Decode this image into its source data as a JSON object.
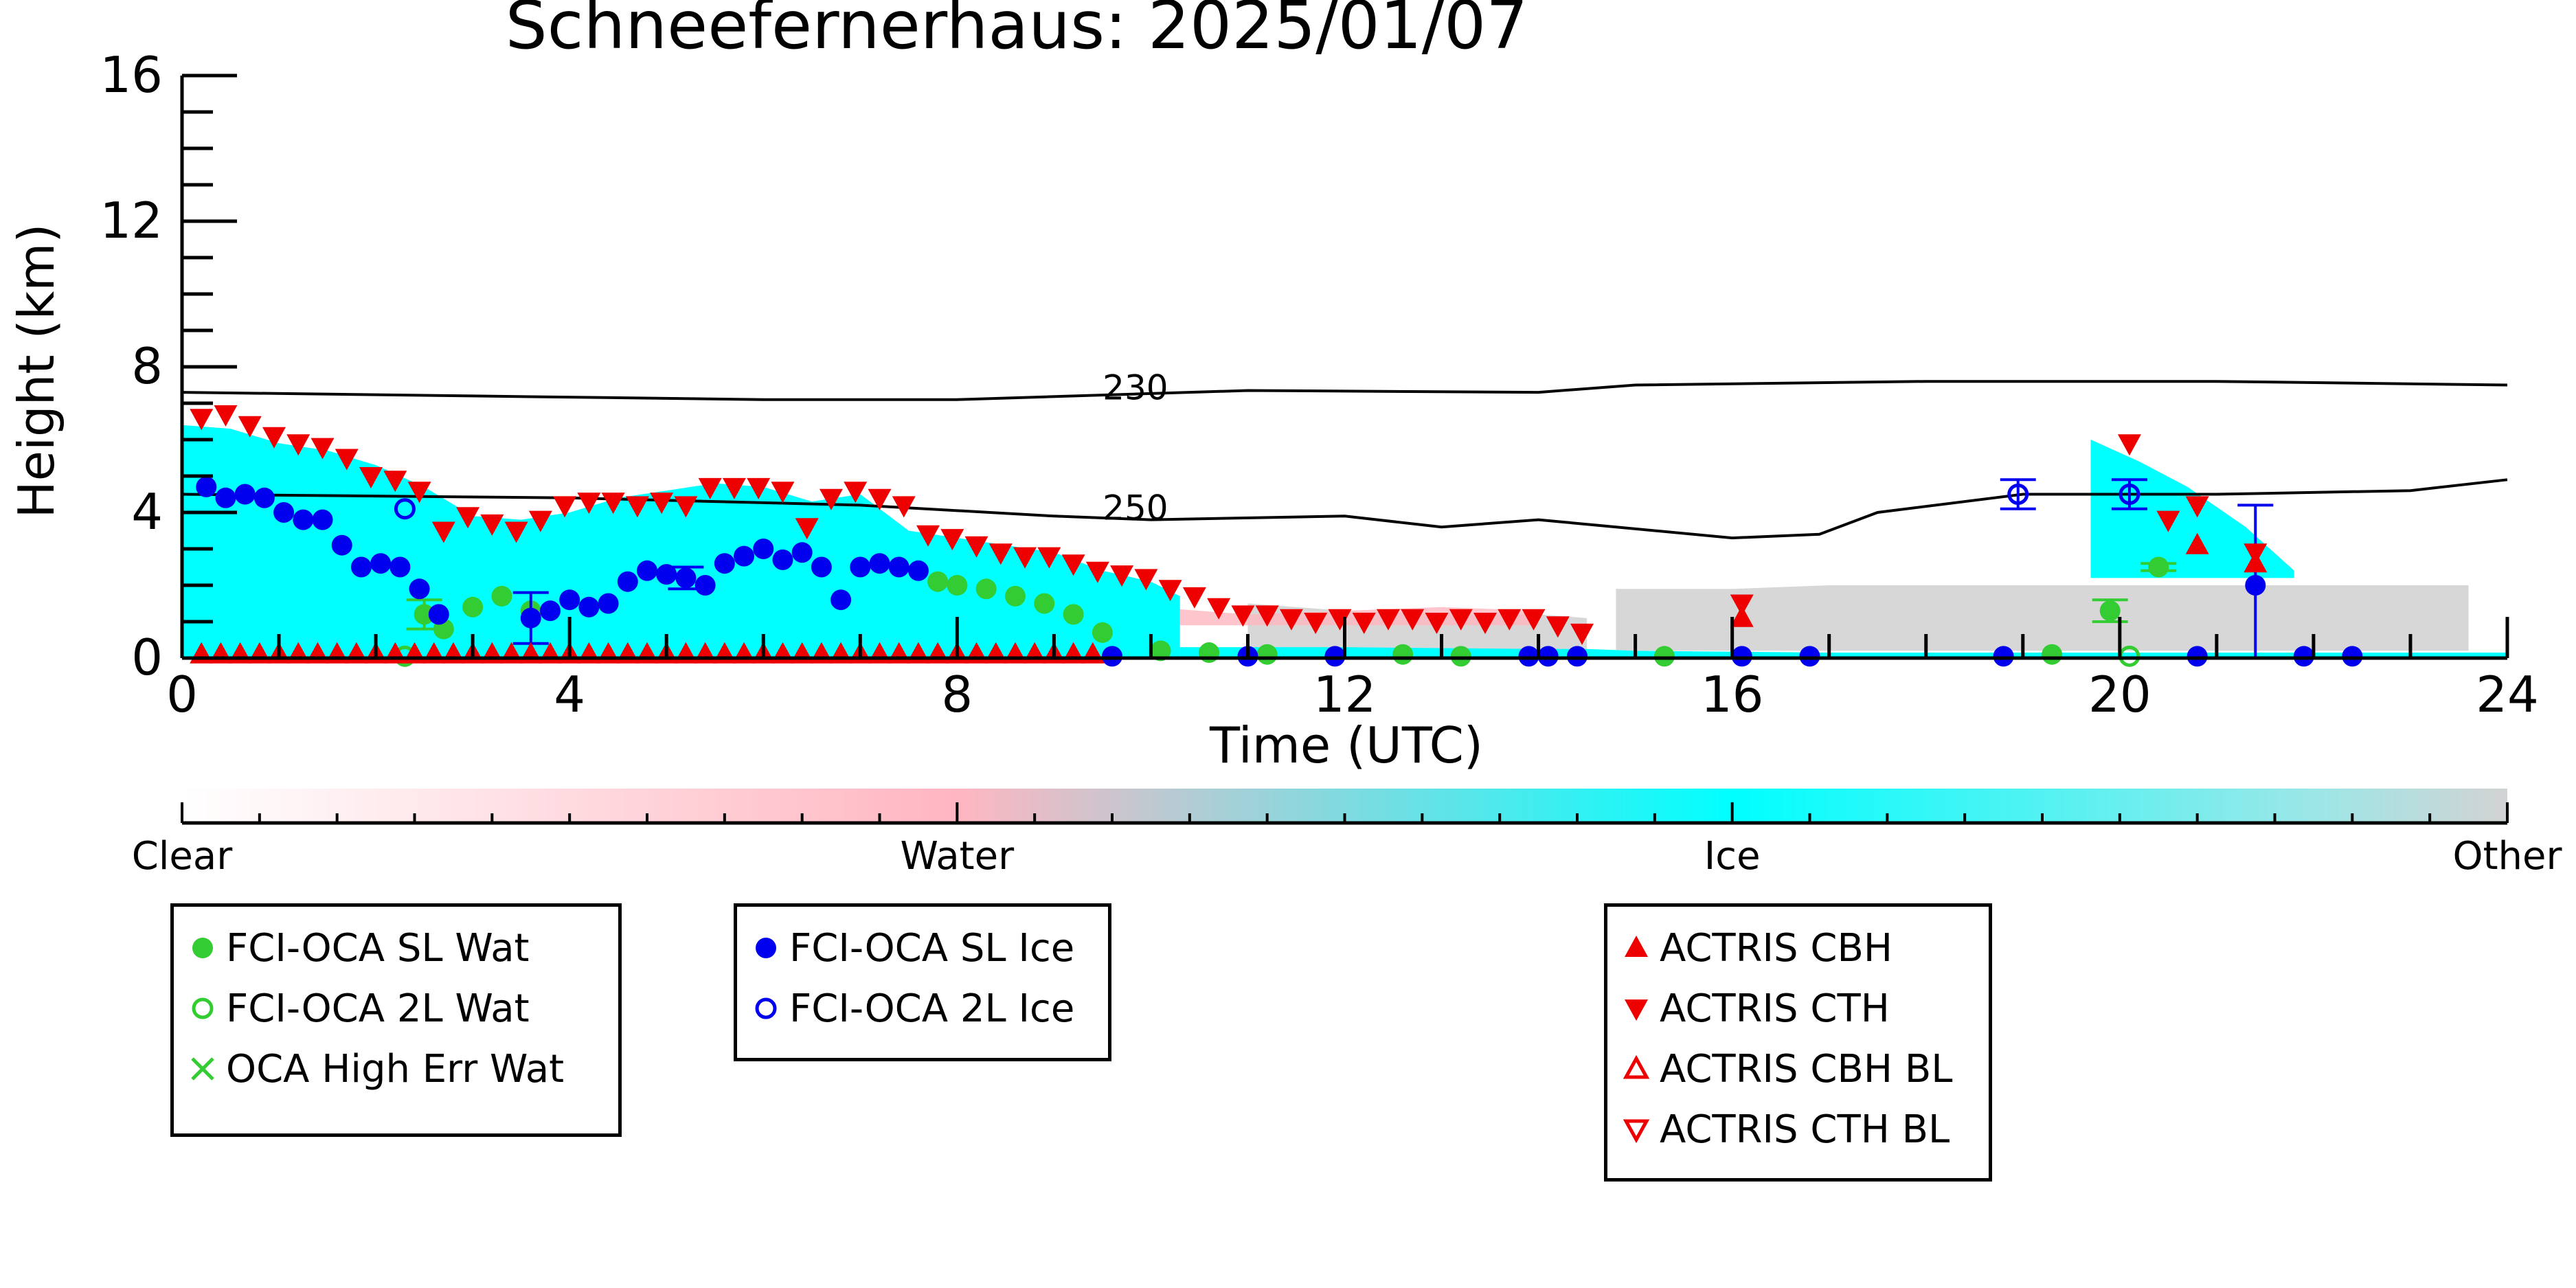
{
  "chart_data": {
    "type": "scatter",
    "title": "Schneefernerhaus: 2025/01/07",
    "xlabel": "Time (UTC)",
    "ylabel": "Height (km)",
    "xlim": [
      0,
      24
    ],
    "ylim": [
      0,
      16
    ],
    "xticks": [
      "0",
      "4",
      "8",
      "12",
      "16",
      "20",
      "24"
    ],
    "yticks": [
      "0",
      "4",
      "8",
      "12",
      "16"
    ],
    "grid": false,
    "contours": [
      {
        "label": "230",
        "label_x": 9.5,
        "label_y": 7.1,
        "points": [
          [
            0,
            7.3
          ],
          [
            3,
            7.2
          ],
          [
            6,
            7.1
          ],
          [
            8,
            7.1
          ],
          [
            11,
            7.35
          ],
          [
            14,
            7.3
          ],
          [
            15,
            7.5
          ],
          [
            18,
            7.6
          ],
          [
            21,
            7.6
          ],
          [
            24,
            7.5
          ]
        ]
      },
      {
        "label": "250",
        "label_x": 9.5,
        "label_y": 3.8,
        "points": [
          [
            0,
            4.5
          ],
          [
            4,
            4.4
          ],
          [
            7,
            4.2
          ],
          [
            9,
            3.9
          ],
          [
            10,
            3.8
          ],
          [
            12,
            3.9
          ],
          [
            13,
            3.6
          ],
          [
            14,
            3.8
          ],
          [
            16,
            3.3
          ],
          [
            16.9,
            3.4
          ],
          [
            17.5,
            4.0
          ],
          [
            19,
            4.5
          ],
          [
            21,
            4.5
          ],
          [
            23,
            4.6
          ],
          [
            24,
            4.9
          ]
        ]
      }
    ],
    "classification": {
      "colorbar_labels": [
        "Clear",
        "Water",
        "Ice",
        "Other"
      ],
      "colors": {
        "clear": "#ffffff",
        "water": "#ffb6c1",
        "ice": "#00ffff",
        "other": "#d3d3d3"
      },
      "ice_regions": [
        {
          "x": [
            0,
            0.5,
            1,
            1.5,
            2,
            2.5,
            3,
            3.5,
            4,
            4.5,
            5,
            5.5,
            6,
            6.5,
            7,
            7.5,
            8,
            8.5,
            9,
            9.5,
            10,
            10.3
          ],
          "top": [
            6.4,
            6.3,
            5.9,
            5.7,
            5.3,
            4.7,
            3.9,
            3.8,
            4.0,
            4.4,
            4.6,
            4.8,
            4.7,
            4.3,
            4.5,
            3.5,
            3.3,
            3.1,
            2.9,
            2.4,
            2.1,
            1.7
          ],
          "bottom": 0
        },
        {
          "x": [
            19.7,
            20.2,
            20.7,
            21.3,
            21.8
          ],
          "top": [
            6.0,
            5.4,
            4.7,
            3.6,
            2.4
          ],
          "bottom": 2.2
        },
        {
          "x": [
            10.3,
            12,
            14,
            14.5,
            15,
            17,
            19,
            21,
            24
          ],
          "top": [
            0.3,
            0.3,
            0.25,
            0.25,
            0.2,
            0.15,
            0.15,
            0.15,
            0.15
          ],
          "bottom": 0
        }
      ],
      "other_regions": [
        {
          "x": [
            11,
            12,
            13,
            14,
            14.5
          ],
          "top": [
            1.5,
            1.3,
            1.2,
            1.2,
            1.1
          ],
          "bottom": 0.2
        },
        {
          "x": [
            14.8,
            16,
            17,
            18,
            19,
            20,
            21,
            22,
            23,
            23.6
          ],
          "top": [
            1.9,
            1.9,
            2.0,
            2.0,
            2.0,
            2.0,
            2.0,
            2.0,
            2.0,
            2.0
          ],
          "bottom": 0.2
        }
      ],
      "water_regions": [
        {
          "x": [
            8,
            9,
            10,
            11,
            12,
            13,
            14
          ],
          "top": [
            1.0,
            1.2,
            1.4,
            1.2,
            1.3,
            1.4,
            1.3
          ],
          "bottom": 0.9
        }
      ]
    },
    "series": [
      {
        "name": "FCI-OCA SL Wat",
        "marker": "filled-circle",
        "color": "#33cc33",
        "x": [
          2.5,
          2.7,
          3.0,
          3.3,
          3.6,
          7.8,
          8.0,
          8.3,
          8.6,
          8.9,
          9.2,
          9.5,
          10.1,
          10.6,
          11.2,
          12.6,
          13.2,
          15.3,
          19.3,
          19.9,
          20.4
        ],
        "y": [
          1.2,
          0.8,
          1.4,
          1.7,
          1.3,
          2.1,
          2.0,
          1.9,
          1.7,
          1.5,
          1.2,
          0.7,
          0.2,
          0.15,
          0.1,
          0.1,
          0.05,
          0.05,
          0.1,
          1.3,
          2.5
        ],
        "yerr": [
          0.4,
          0,
          0,
          0,
          0,
          0,
          0,
          0,
          0,
          0,
          0,
          0,
          0,
          0,
          0,
          0,
          0,
          0,
          0,
          0.3,
          0.1
        ]
      },
      {
        "name": "FCI-OCA 2L Wat",
        "marker": "open-circle",
        "color": "#33cc33",
        "x": [
          2.3,
          20.1
        ],
        "y": [
          0.05,
          0.05
        ],
        "yerr": [
          0,
          0
        ]
      },
      {
        "name": "OCA High Err Wat",
        "marker": "x",
        "color": "#33cc33",
        "x": [],
        "y": [],
        "yerr": []
      },
      {
        "name": "FCI-OCA SL Ice",
        "marker": "filled-circle",
        "color": "#0000ee",
        "x": [
          0.25,
          0.45,
          0.65,
          0.85,
          1.05,
          1.25,
          1.45,
          1.65,
          1.85,
          2.05,
          2.25,
          2.45,
          2.65,
          3.6,
          3.8,
          4.0,
          4.2,
          4.4,
          4.6,
          4.8,
          5.0,
          5.2,
          5.4,
          5.6,
          5.8,
          6.0,
          6.2,
          6.4,
          6.6,
          6.8,
          7.0,
          7.2,
          7.4,
          7.6,
          9.6,
          11.0,
          11.9,
          13.9,
          14.1,
          14.4,
          16.1,
          16.8,
          18.8,
          20.8,
          21.4,
          21.9,
          22.4
        ],
        "y": [
          4.7,
          4.4,
          4.5,
          4.4,
          4.0,
          3.8,
          3.8,
          3.1,
          2.5,
          2.6,
          2.5,
          1.9,
          1.2,
          1.1,
          1.3,
          1.6,
          1.4,
          1.5,
          2.1,
          2.4,
          2.3,
          2.2,
          2.0,
          2.6,
          2.8,
          3.0,
          2.7,
          2.9,
          2.5,
          1.6,
          2.5,
          2.6,
          2.5,
          2.4,
          0.05,
          0.05,
          0.05,
          0.05,
          0.05,
          0.05,
          0.05,
          0.05,
          0.05,
          0.05,
          2.0,
          0.05,
          0.05
        ],
        "yerr": [
          0,
          0,
          0,
          0,
          0,
          0,
          0,
          0,
          0,
          0,
          0,
          0,
          0,
          0.7,
          0,
          0,
          0,
          0,
          0,
          0,
          0,
          0.3,
          0,
          0,
          0,
          0,
          0,
          0,
          0,
          0,
          0,
          0,
          0,
          0,
          0,
          0,
          0,
          0,
          0,
          0,
          0,
          0,
          0,
          0,
          2.2,
          0,
          0
        ]
      },
      {
        "name": "FCI-OCA 2L Ice",
        "marker": "open-circle",
        "color": "#0000ee",
        "x": [
          2.3,
          18.95,
          20.1
        ],
        "y": [
          4.1,
          4.5,
          4.5
        ],
        "yerr": [
          0,
          0.4,
          0.4
        ]
      },
      {
        "name": "ACTRIS CBH",
        "marker": "triangle-up",
        "color": "#ee0000",
        "x": [
          0.2,
          0.4,
          0.6,
          0.8,
          1.0,
          1.2,
          1.4,
          1.6,
          1.8,
          2.0,
          2.2,
          2.4,
          2.6,
          2.8,
          3.0,
          3.2,
          3.4,
          3.6,
          3.8,
          4.0,
          4.2,
          4.4,
          4.6,
          4.8,
          5.0,
          5.2,
          5.4,
          5.6,
          5.8,
          6.0,
          6.2,
          6.4,
          6.6,
          6.8,
          7.0,
          7.2,
          7.4,
          7.6,
          7.8,
          8.0,
          8.2,
          8.4,
          8.6,
          8.8,
          9.0,
          9.2,
          9.4,
          16.1,
          20.8,
          21.4
        ],
        "y": [
          0.1,
          0.1,
          0.1,
          0.1,
          0.1,
          0.1,
          0.1,
          0.1,
          0.1,
          0.1,
          0.1,
          0.1,
          0.1,
          0.1,
          0.1,
          0.1,
          0.1,
          0.1,
          0.1,
          0.1,
          0.1,
          0.1,
          0.1,
          0.1,
          0.1,
          0.1,
          0.1,
          0.1,
          0.1,
          0.1,
          0.1,
          0.1,
          0.1,
          0.1,
          0.1,
          0.1,
          0.1,
          0.1,
          0.1,
          0.1,
          0.1,
          0.1,
          0.1,
          0.1,
          0.1,
          0.1,
          0.1,
          1.1,
          3.1,
          2.6
        ]
      },
      {
        "name": "ACTRIS CTH",
        "marker": "triangle-down",
        "color": "#ee0000",
        "x": [
          0.2,
          0.45,
          0.7,
          0.95,
          1.2,
          1.45,
          1.7,
          1.95,
          2.2,
          2.45,
          2.7,
          2.95,
          3.2,
          3.45,
          3.7,
          3.95,
          4.2,
          4.45,
          4.7,
          4.95,
          5.2,
          5.45,
          5.7,
          5.95,
          6.2,
          6.45,
          6.7,
          6.95,
          7.2,
          7.45,
          7.7,
          7.95,
          8.2,
          8.45,
          8.7,
          8.95,
          9.2,
          9.45,
          9.7,
          9.95,
          10.2,
          10.45,
          10.7,
          10.95,
          11.2,
          11.45,
          11.7,
          11.95,
          12.2,
          12.45,
          12.7,
          12.95,
          13.2,
          13.45,
          13.7,
          13.95,
          14.2,
          14.45,
          16.1,
          20.1,
          20.5,
          20.8,
          21.4
        ],
        "y": [
          6.6,
          6.7,
          6.4,
          6.1,
          5.9,
          5.8,
          5.5,
          5.0,
          4.9,
          4.6,
          3.5,
          3.9,
          3.7,
          3.5,
          3.8,
          4.2,
          4.3,
          4.3,
          4.2,
          4.3,
          4.2,
          4.7,
          4.7,
          4.7,
          4.6,
          3.6,
          4.4,
          4.6,
          4.4,
          4.2,
          3.4,
          3.3,
          3.1,
          2.9,
          2.8,
          2.8,
          2.6,
          2.4,
          2.3,
          2.2,
          1.9,
          1.7,
          1.4,
          1.2,
          1.2,
          1.1,
          1.0,
          1.1,
          1.0,
          1.1,
          1.1,
          1.0,
          1.1,
          1.0,
          1.1,
          1.1,
          0.9,
          0.7,
          1.5,
          5.9,
          3.8,
          4.2,
          2.9
        ]
      },
      {
        "name": "ACTRIS CBH BL",
        "marker": "open-triangle-up",
        "color": "#ee0000",
        "x": [],
        "y": []
      },
      {
        "name": "ACTRIS CTH BL",
        "marker": "open-triangle-down",
        "color": "#ee0000",
        "x": [],
        "y": []
      }
    ],
    "legend_groups": [
      [
        "FCI-OCA SL Wat",
        "FCI-OCA 2L Wat",
        "OCA High Err Wat"
      ],
      [
        "FCI-OCA SL Ice",
        "FCI-OCA 2L Ice"
      ],
      [
        "ACTRIS CBH",
        "ACTRIS CTH",
        "ACTRIS CBH BL",
        "ACTRIS CTH BL"
      ]
    ]
  }
}
